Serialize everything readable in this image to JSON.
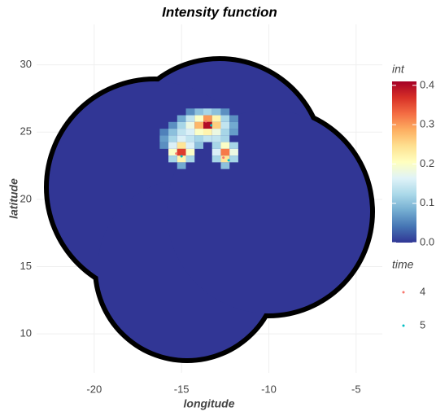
{
  "chart_data": {
    "type": "raster",
    "title": "Intensity function",
    "xlabel": "longitude",
    "ylabel": "latitude",
    "xlim": [
      -23.3,
      -3.5
    ],
    "ylim": [
      7.1,
      33
    ],
    "xticks": [
      -20,
      -15,
      -10,
      -5
    ],
    "yticks": [
      10,
      15,
      20,
      25,
      30
    ],
    "grid": true,
    "cell_size": 0.5,
    "cells": {
      "x": [
        -14.5,
        -14,
        -13.5,
        -13,
        -12.5,
        -15,
        -14.5,
        -14,
        -13.5,
        -13,
        -12.5,
        -12,
        -15.5,
        -15,
        -14.5,
        -14,
        -13.5,
        -13,
        -12.5,
        -12,
        -16,
        -15.5,
        -15,
        -14.5,
        -14,
        -13.5,
        -13,
        -12.5,
        -12,
        -16,
        -15.5,
        -15,
        -14.5,
        -14,
        -13.5,
        -13,
        -12.5,
        -16,
        -15.5,
        -15,
        -14.5,
        -14,
        -13,
        -12.5,
        -12,
        -15.5,
        -15,
        -14.5,
        -13,
        -12.5,
        -12,
        -15.5,
        -15,
        -14.5,
        -13,
        -12.5,
        -12,
        -15,
        -12.5
      ],
      "y": [
        26.5,
        26.5,
        26.5,
        26.5,
        26.5,
        26,
        26,
        26,
        26,
        26,
        26,
        26,
        25.5,
        25.5,
        25.5,
        25.5,
        25.5,
        25.5,
        25.5,
        25.5,
        25,
        25,
        25,
        25,
        25,
        25,
        25,
        25,
        25,
        24.5,
        24.5,
        24.5,
        24.5,
        24.5,
        24.5,
        24.5,
        24.5,
        24,
        24,
        24,
        24,
        24,
        24,
        24,
        24,
        23.5,
        23.5,
        23.5,
        23.5,
        23.5,
        23.5,
        23,
        23,
        23,
        23,
        23,
        23,
        22.5,
        22.5
      ],
      "values": [
        0.06,
        0.1,
        0.12,
        0.1,
        0.06,
        0.08,
        0.14,
        0.2,
        0.3,
        0.22,
        0.12,
        0.06,
        0.06,
        0.12,
        0.18,
        0.28,
        0.4,
        0.26,
        0.14,
        0.08,
        0.05,
        0.1,
        0.14,
        0.16,
        0.2,
        0.22,
        0.18,
        0.12,
        0.07,
        0.07,
        0.12,
        0.16,
        0.14,
        0.12,
        0.14,
        0.14,
        0.12,
        0.06,
        0.16,
        0.24,
        0.16,
        0.1,
        0.12,
        0.2,
        0.12,
        0.2,
        0.36,
        0.2,
        0.16,
        0.32,
        0.18,
        0.12,
        0.22,
        0.12,
        0.12,
        0.24,
        0.12,
        0.08,
        0.1
      ]
    },
    "colorbar": {
      "title": "int",
      "lim": [
        0,
        0.41
      ],
      "ticks": [
        {
          "value": 0,
          "label": "0.0"
        },
        0.1,
        0.2,
        0.3,
        0.4
      ],
      "colors": [
        "#313695",
        "#4575b4",
        "#74add1",
        "#abd9e9",
        "#e0f3f8",
        "#ffffbf",
        "#fee090",
        "#fdae61",
        "#f46d43",
        "#d73027",
        "#a50026"
      ]
    },
    "legend_title": "time",
    "series": [
      {
        "name": "4",
        "color": "#f8766d",
        "x": [
          -15.3,
          -12.6,
          -13.6
        ],
        "y": [
          23.4,
          23.1,
          25.8
        ]
      },
      {
        "name": "5",
        "color": "#00bfc4",
        "x": [
          -15.0,
          -12.3,
          -13.3
        ],
        "y": [
          23.2,
          22.9,
          25.5
        ]
      }
    ]
  }
}
